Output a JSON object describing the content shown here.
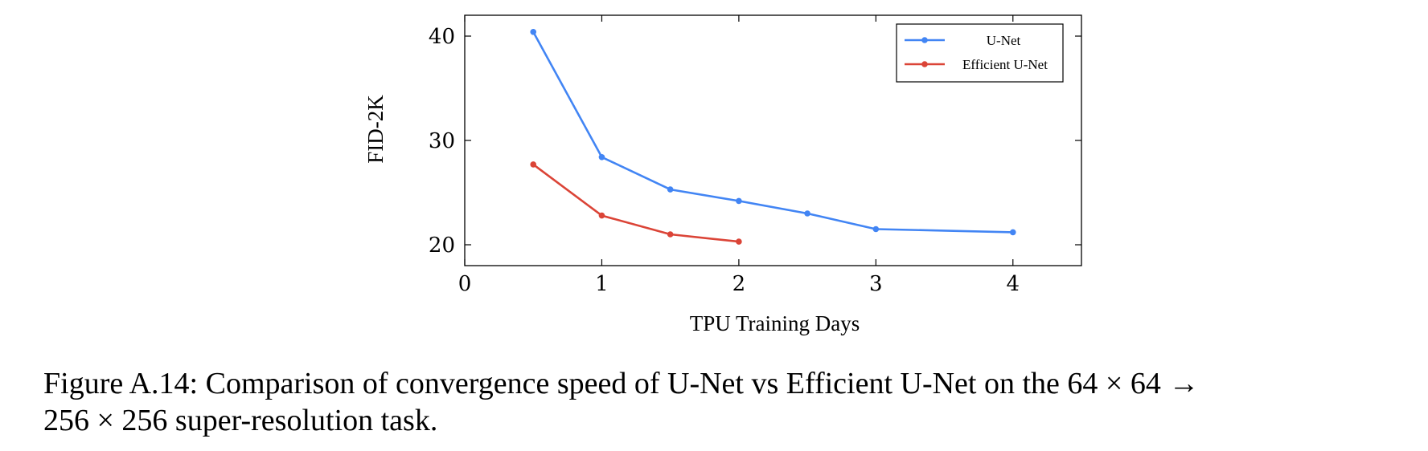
{
  "chart_data": {
    "type": "line",
    "xlabel": "TPU Training Days",
    "ylabel": "FID-2K",
    "xlim": [
      0,
      4.5
    ],
    "ylim": [
      18,
      42
    ],
    "xticks": [
      0,
      1,
      2,
      3,
      4
    ],
    "yticks": [
      20,
      30,
      40
    ],
    "grid": false,
    "legend_position": "top-right",
    "series": [
      {
        "name": "U-Net",
        "color": "#4285f4",
        "x": [
          0.5,
          1,
          1.5,
          2,
          2.5,
          3,
          4
        ],
        "y": [
          40.4,
          28.4,
          25.3,
          24.2,
          23.0,
          21.5,
          21.2
        ]
      },
      {
        "name": "Efficient U-Net",
        "color": "#db4437",
        "x": [
          0.5,
          1,
          1.5,
          2
        ],
        "y": [
          27.7,
          22.8,
          21.0,
          20.3
        ]
      }
    ]
  },
  "caption": {
    "line1": "Figure A.14: Comparison of convergence speed of U-Net vs Efficient U-Net on the 64 × 64 →",
    "line2": "256 × 256 super-resolution task."
  }
}
